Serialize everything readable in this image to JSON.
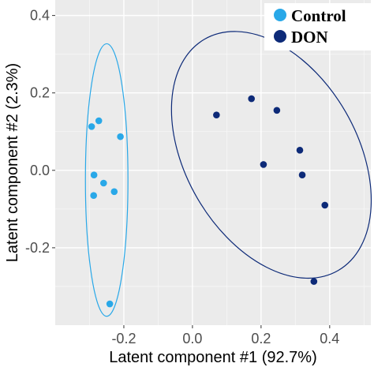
{
  "chart_data": {
    "type": "scatter",
    "title": "",
    "xlabel": "Latent component #1 (92.7%)",
    "ylabel": "Latent component #2 (2.3%)",
    "xlim": [
      -0.4,
      0.52
    ],
    "ylim": [
      -0.4,
      0.44
    ],
    "x_ticks": [
      -0.2,
      0.0,
      0.2,
      0.4
    ],
    "x_tick_labels": [
      "-0.2",
      "0.0",
      "0.2",
      "0.4"
    ],
    "y_ticks": [
      -0.2,
      0.0,
      0.2,
      0.4
    ],
    "y_tick_labels": [
      "-0.2",
      "0.0",
      "0.2",
      "0.4"
    ],
    "grid": true,
    "legend_position": "top-right",
    "series": [
      {
        "name": "Control",
        "color": "#29a8e8",
        "x": [
          -0.294,
          -0.273,
          -0.287,
          -0.288,
          -0.259,
          -0.228,
          -0.21,
          -0.241
        ],
        "y": [
          0.113,
          0.128,
          -0.012,
          -0.065,
          -0.033,
          -0.055,
          0.087,
          -0.345
        ],
        "ellipse": {
          "center_x": -0.25,
          "center_y": -0.025,
          "semi_x": 0.062,
          "semi_y": 0.352,
          "angle_deg": 0
        }
      },
      {
        "name": "DON",
        "color": "#0d2a78",
        "x": [
          0.07,
          0.172,
          0.246,
          0.207,
          0.313,
          0.32,
          0.386,
          0.354
        ],
        "y": [
          0.143,
          0.185,
          0.155,
          0.015,
          0.052,
          -0.012,
          -0.09,
          -0.287
        ],
        "ellipse": {
          "center_x": 0.23,
          "center_y": 0.04,
          "semi_x": 0.25,
          "semi_y": 0.345,
          "angle_deg": -30
        }
      }
    ]
  }
}
